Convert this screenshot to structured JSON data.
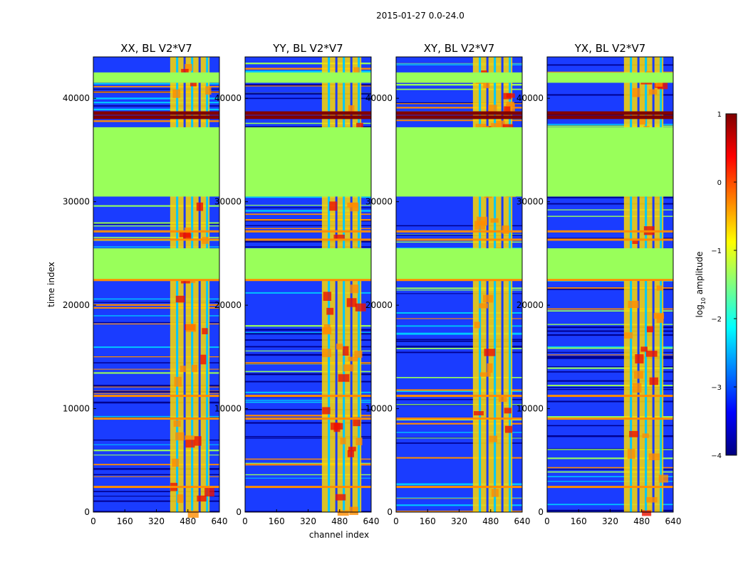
{
  "figure_title": "2015-01-27 0.0-24.0",
  "chart_data": {
    "type": "heatmap",
    "xlabel": "channel index",
    "ylabel": "time index",
    "xlim": [
      0,
      640
    ],
    "ylim": [
      0,
      44000
    ],
    "x_ticks": [
      0,
      160,
      320,
      480,
      640
    ],
    "y_ticks": [
      0,
      10000,
      20000,
      30000,
      40000
    ],
    "panels": [
      {
        "title": "XX, BL V2*V7",
        "pol": "XX"
      },
      {
        "title": "YY, BL V2*V7",
        "pol": "YY"
      },
      {
        "title": "XY, BL V2*V7",
        "pol": "XY"
      },
      {
        "title": "YX, BL V2*V7",
        "pol": "YX"
      }
    ],
    "colorbar": {
      "label": "log10 amplitude",
      "label_main": "log",
      "label_sub": "10",
      "label_rest": " amplitude",
      "range": [
        -4,
        1
      ],
      "ticks": [
        1,
        0,
        -1,
        -2,
        -3,
        -4
      ],
      "tick_labels": [
        "1",
        "0",
        "−1",
        "−2",
        "−3",
        "−4"
      ],
      "colormap": "jet"
    },
    "bright_channel_range": [
      390,
      590
    ],
    "flat_time_ranges": [
      [
        22500,
        25500
      ],
      [
        30500,
        37200
      ],
      [
        41500,
        42500
      ]
    ],
    "hot_row_times": [
      38600,
      38200,
      27100,
      26300,
      22400,
      11200,
      9000,
      2400
    ]
  }
}
